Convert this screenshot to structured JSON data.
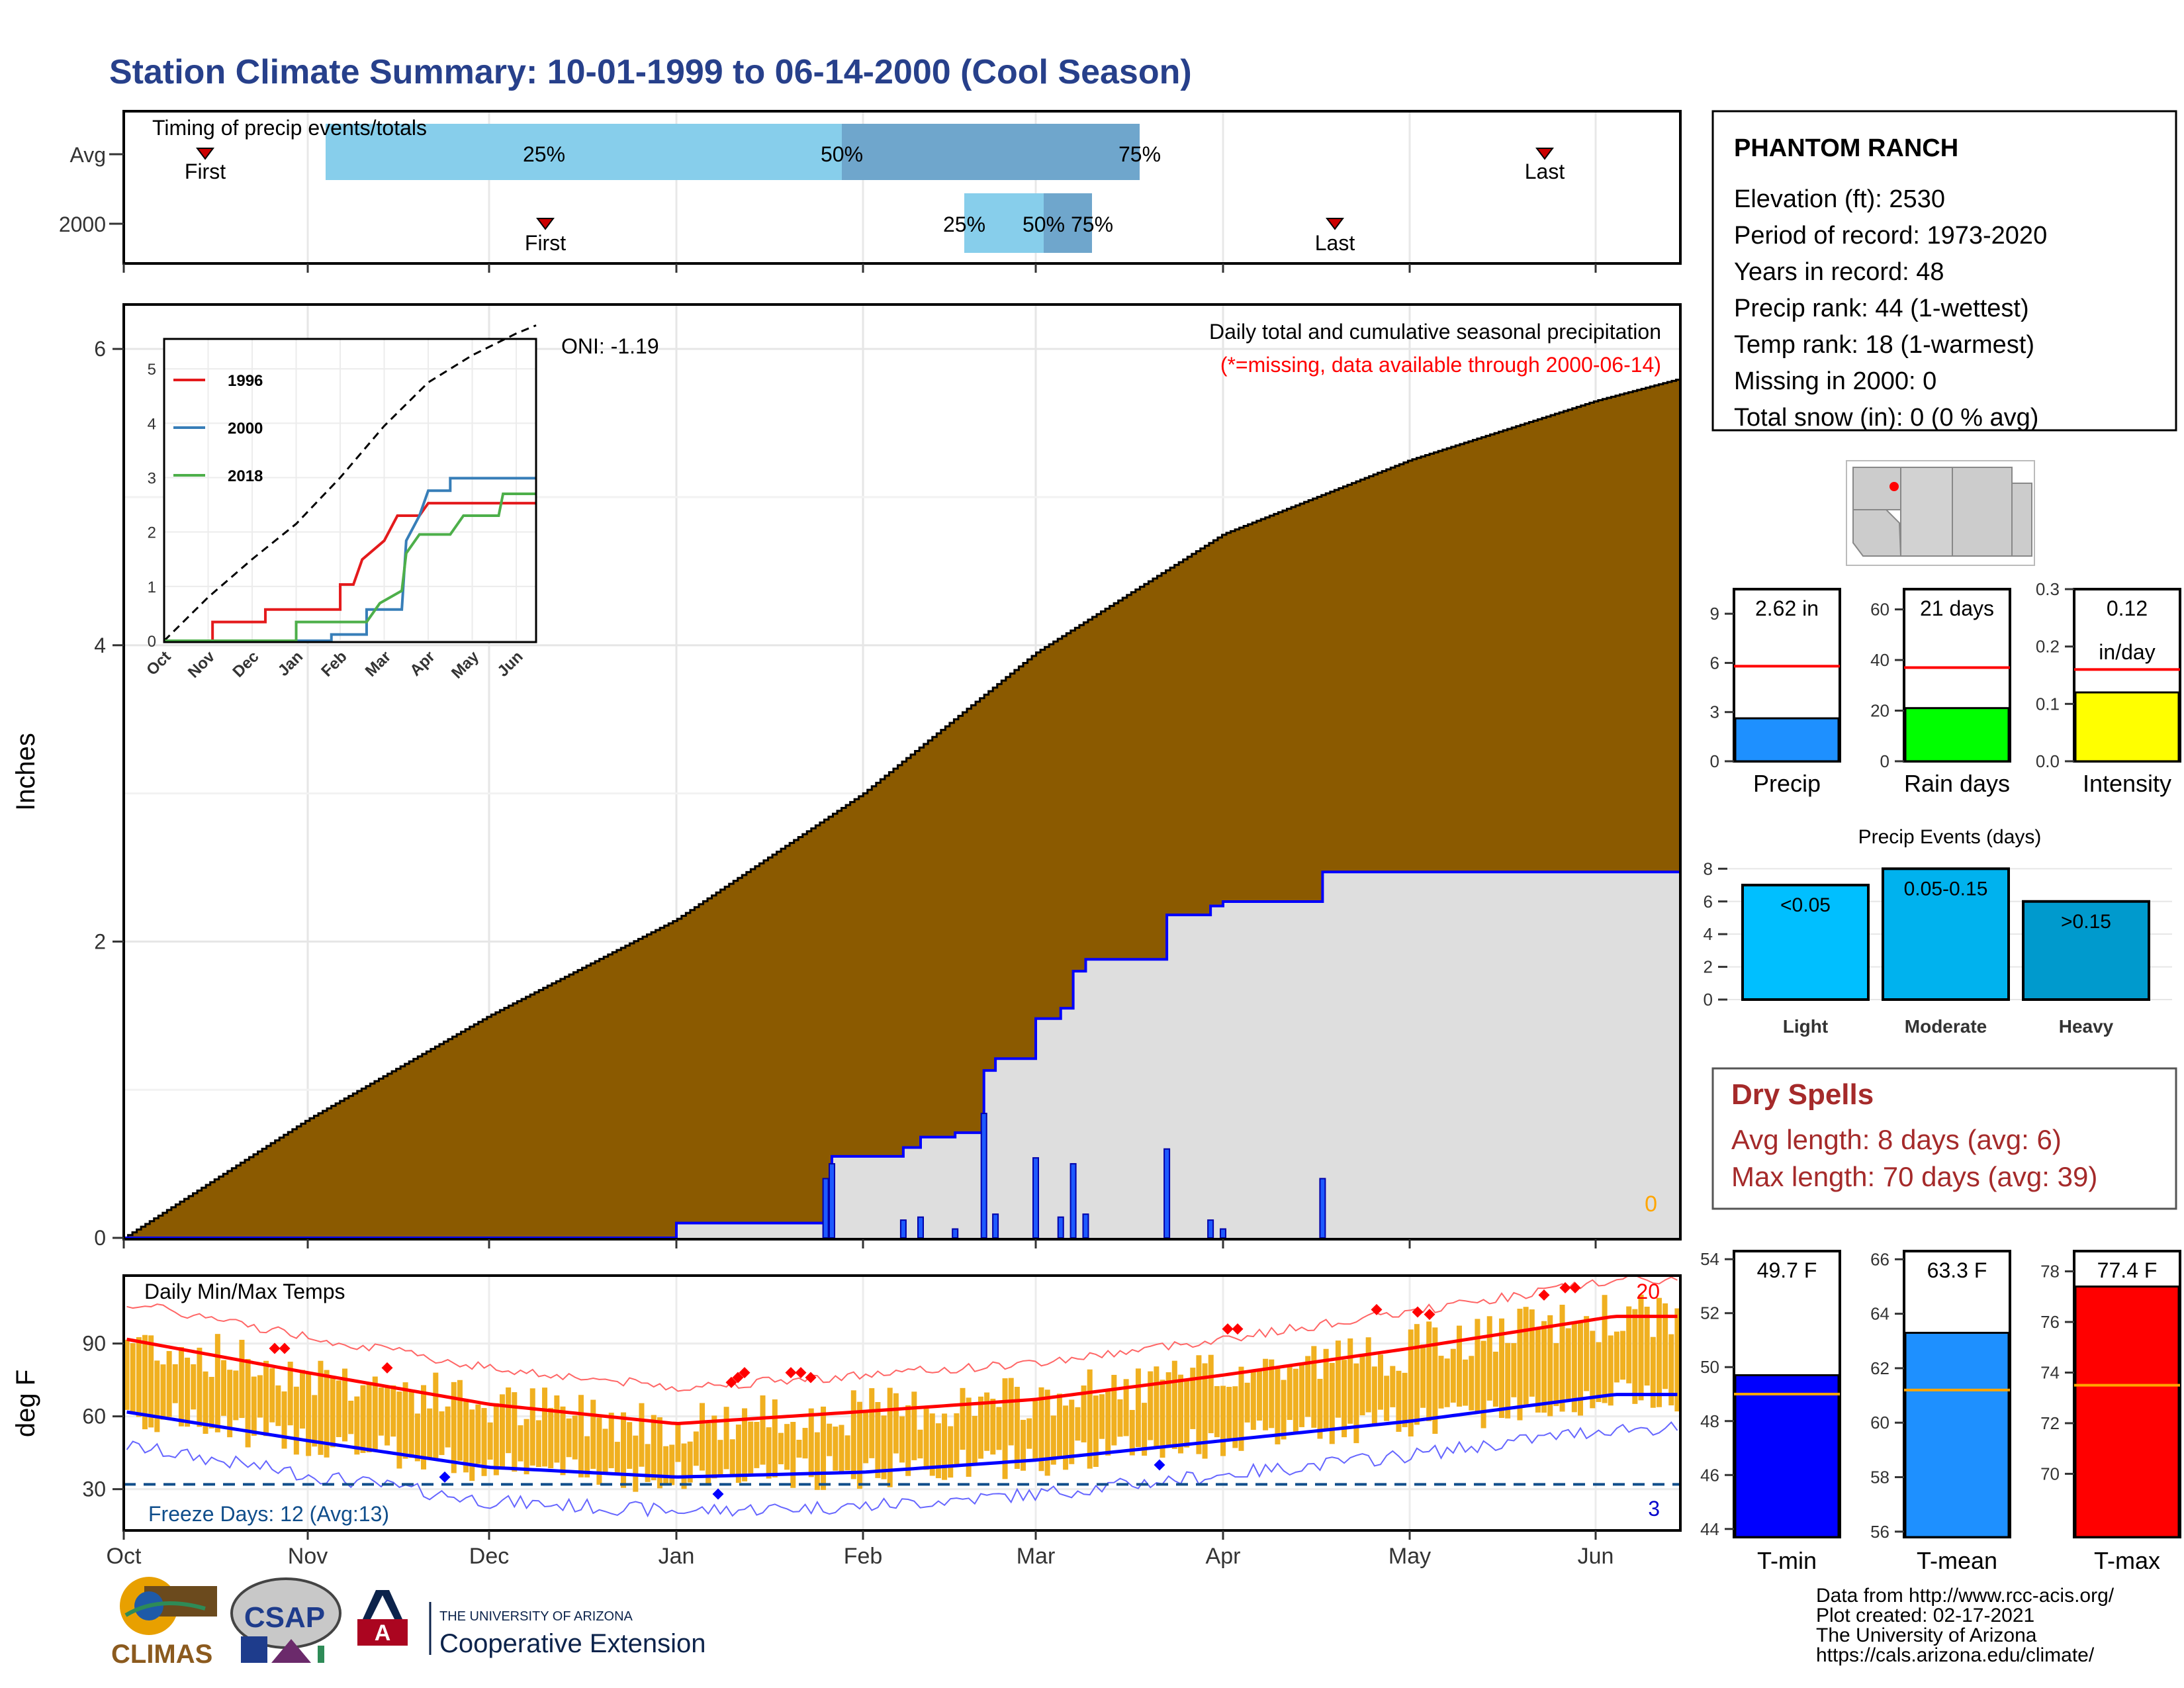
{
  "title": "Station Climate Summary: 10-01-1999 to 06-14-2000 (Cool Season)",
  "colors": {
    "title": "#27408b",
    "brown": "#8b5a00",
    "gray_fill": "#dedede",
    "blue_line": "#0000ff",
    "q_light": "#87ceeb",
    "q_dark": "#6fa6cc",
    "red": "#ff0000",
    "orange": "#f0b020",
    "dry": "#a52a2a"
  },
  "timing": {
    "label": "Timing of precip events/totals",
    "rows": [
      {
        "name": "Avg",
        "q25": "25%",
        "q50": "50%",
        "q75": "75%",
        "first": "First",
        "last": "Last"
      },
      {
        "name": "2000",
        "q25": "25%",
        "q50": "50%",
        "q75": "75%",
        "first": "First",
        "last": "Last"
      }
    ]
  },
  "main": {
    "ylabel": "Inches",
    "oni": "ONI: -1.19",
    "title": "Daily total and cumulative seasonal precipitation",
    "missing": "(*=missing, data available through 2000-06-14)",
    "missing_count": "0",
    "yticks": [
      "0",
      "2",
      "4",
      "6"
    ],
    "ylim": [
      0,
      6.3
    ]
  },
  "inset": {
    "yticks": [
      "0",
      "1",
      "2",
      "3",
      "4",
      "5"
    ],
    "months": [
      "Oct",
      "Nov",
      "Dec",
      "Jan",
      "Feb",
      "Mar",
      "Apr",
      "May",
      "Jun"
    ],
    "legend": [
      "1996",
      "2000",
      "2018"
    ],
    "legend_colors": [
      "#e41a1c",
      "#377eb8",
      "#4daf4a"
    ]
  },
  "temps": {
    "label": "Daily Min/Max Temps",
    "ylabel": "deg F",
    "yticks": [
      "30",
      "60",
      "90"
    ],
    "freeze": "Freeze Days: 12 (Avg:13)",
    "max_count": "20",
    "min_count": "3"
  },
  "months": [
    "Oct",
    "Nov",
    "Dec",
    "Jan",
    "Feb",
    "Mar",
    "Apr",
    "May",
    "Jun"
  ],
  "station": {
    "name": "PHANTOM RANCH",
    "lines": [
      "Elevation (ft): 2530",
      "Period of record: 1973-2020",
      "Years in record: 48",
      "Precip rank: 44 (1-wettest)",
      "Temp rank: 18 (1-warmest)",
      "Missing in 2000: 0",
      "Total snow (in): 0 (0 % avg)"
    ]
  },
  "minis": [
    {
      "label": "2.62 in",
      "label2": "",
      "cat": "Precip",
      "yticks": [
        "0",
        "3",
        "6",
        "9"
      ],
      "color": "#1e90ff"
    },
    {
      "label": "21 days",
      "label2": "",
      "cat": "Rain days",
      "yticks": [
        "0",
        "20",
        "40",
        "60"
      ],
      "color": "#00ff00"
    },
    {
      "label": "0.12",
      "label2": "in/day",
      "cat": "Intensity",
      "yticks": [
        "0.0",
        "0.1",
        "0.2",
        "0.3"
      ],
      "color": "#ffff00"
    }
  ],
  "events": {
    "title": "Precip Events (days)",
    "yticks": [
      "0",
      "2",
      "4",
      "6",
      "8"
    ],
    "bars": [
      {
        "label": "<0.05",
        "cat": "Light",
        "color": "#00bfff"
      },
      {
        "label": "0.05-0.15",
        "cat": "Moderate",
        "color": "#00b2ee"
      },
      {
        "label": ">0.15",
        "cat": "Heavy",
        "color": "#009acd"
      }
    ]
  },
  "dry": {
    "title": "Dry Spells",
    "avg": "Avg length: 8 days (avg: 6)",
    "max": "Max length: 70 days (avg: 39)"
  },
  "tbars": [
    {
      "label": "49.7 F",
      "cat": "T-min",
      "yticks": [
        "44",
        "46",
        "48",
        "50",
        "52",
        "54"
      ],
      "color": "#0000ff"
    },
    {
      "label": "63.3 F",
      "cat": "T-mean",
      "yticks": [
        "56",
        "58",
        "60",
        "62",
        "64",
        "66"
      ],
      "color": "#1e90ff"
    },
    {
      "label": "77.4 F",
      "cat": "T-max",
      "yticks": [
        "70",
        "72",
        "74",
        "76",
        "78"
      ],
      "color": "#ff0000"
    }
  ],
  "footer": {
    "lines": [
      "Data from http://www.rcc-acis.org/",
      "Plot created: 02-17-2021",
      "The University of Arizona",
      "https://cals.arizona.edu/climate/"
    ],
    "climas": "CLIMAS",
    "csap": "CSAP",
    "ua_small": "THE UNIVERSITY OF ARIZONA",
    "ua_big": "Cooperative Extension"
  },
  "chart_data": {
    "type": "area",
    "title": "Daily total and cumulative seasonal precipitation",
    "ylabel": "Inches",
    "ylim": [
      0,
      6.3
    ],
    "x": [
      "Oct",
      "Nov",
      "Dec",
      "Jan",
      "Feb",
      "Mar",
      "Apr",
      "May",
      "Jun",
      "Jun-14"
    ],
    "series": [
      {
        "name": "Avg cumulative",
        "values": [
          0,
          0.8,
          1.5,
          2.15,
          3.0,
          3.95,
          4.75,
          5.25,
          5.65,
          5.8
        ]
      },
      {
        "name": "2000 cumulative",
        "values": [
          0,
          0,
          0,
          0.1,
          0.45,
          1.55,
          2.4,
          2.62,
          2.62,
          2.62
        ]
      }
    ],
    "daily_2000": [
      {
        "date": "2000-01-25",
        "value": 0.2
      },
      {
        "date": "2000-01-26",
        "value": 0.25
      },
      {
        "date": "2000-02-08",
        "value": 0.06
      },
      {
        "date": "2000-02-11",
        "value": 0.07
      },
      {
        "date": "2000-02-17",
        "value": 0.03
      },
      {
        "date": "2000-02-22",
        "value": 0.42
      },
      {
        "date": "2000-02-24",
        "value": 0.08
      },
      {
        "date": "2000-03-01",
        "value": 0.27
      },
      {
        "date": "2000-03-05",
        "value": 0.07
      },
      {
        "date": "2000-03-07",
        "value": 0.25
      },
      {
        "date": "2000-03-09",
        "value": 0.08
      },
      {
        "date": "2000-03-22",
        "value": 0.3
      },
      {
        "date": "2000-03-29",
        "value": 0.06
      },
      {
        "date": "2000-03-31",
        "value": 0.03
      },
      {
        "date": "2000-04-17",
        "value": 0.2
      }
    ],
    "precip_events": {
      "categories": [
        "Light",
        "Moderate",
        "Heavy"
      ],
      "values": [
        7,
        8,
        6
      ]
    },
    "summary_bars": [
      {
        "name": "Precip",
        "value": 2.62,
        "avg": 5.8,
        "ylim": [
          0,
          10.5
        ]
      },
      {
        "name": "Rain days",
        "value": 21,
        "avg": 37,
        "ylim": [
          0,
          68
        ]
      },
      {
        "name": "Intensity",
        "value": 0.12,
        "avg": 0.16,
        "ylim": [
          0,
          0.3
        ]
      }
    ],
    "temp_bars": [
      {
        "name": "T-min",
        "value": 49.7,
        "avg": 49.0,
        "ylim": [
          43.7,
          54.3
        ]
      },
      {
        "name": "T-mean",
        "value": 63.3,
        "avg": 61.2,
        "ylim": [
          55.8,
          66.3
        ]
      },
      {
        "name": "T-max",
        "value": 77.4,
        "avg": 73.5,
        "ylim": [
          67.5,
          78.8
        ]
      }
    ],
    "temps_smoothed": {
      "months": [
        "Oct",
        "Nov",
        "Dec",
        "Jan",
        "Feb",
        "Mar",
        "Apr",
        "May",
        "Jun"
      ],
      "avg_max": [
        92,
        78,
        65,
        57,
        62,
        67,
        77,
        88,
        100
      ],
      "avg_min": [
        62,
        50,
        39,
        35,
        37,
        42,
        50,
        58,
        68
      ]
    }
  }
}
